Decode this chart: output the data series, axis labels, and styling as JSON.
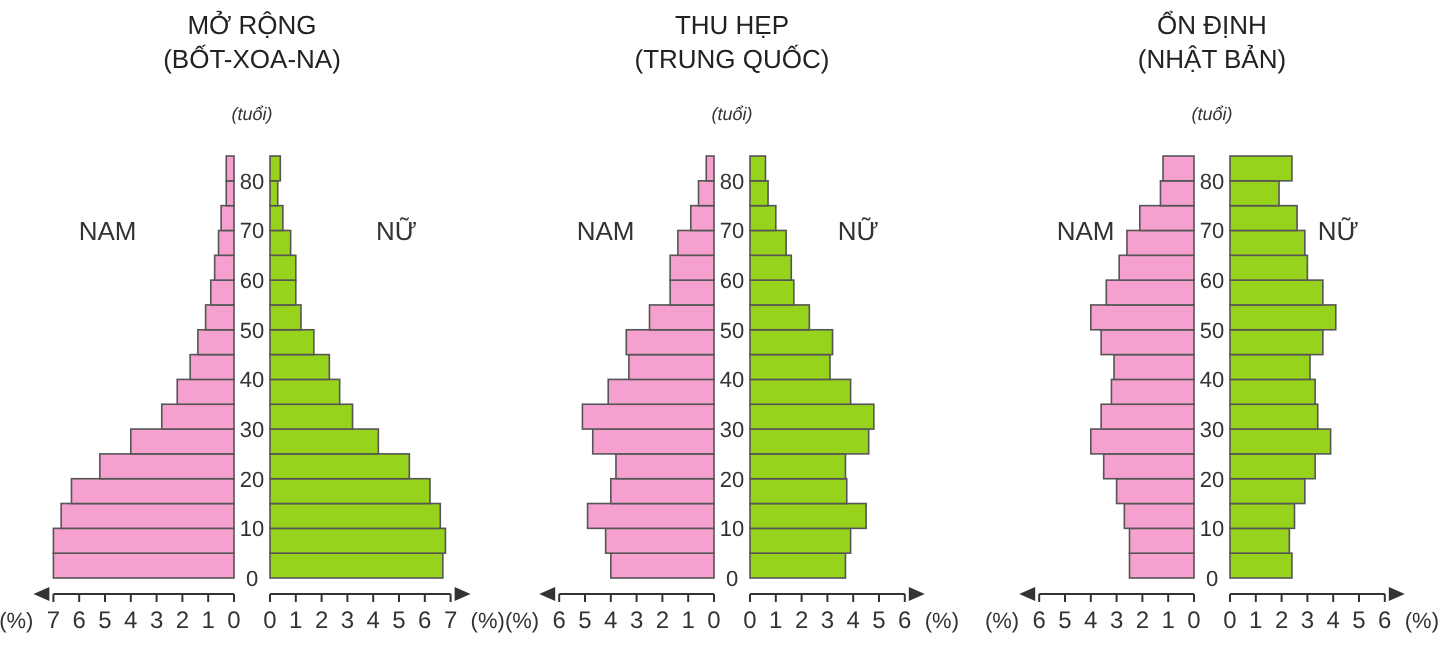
{
  "chart_data": [
    {
      "type": "bar",
      "orientation": "horizontal",
      "title": "MỞ RỘNG",
      "subtitle": "(BỐT-XOA-NA)",
      "ylabel": "(tuổi)",
      "xlabel": "(%)",
      "x": [
        2.5,
        7.5,
        12.5,
        17.5,
        22.5,
        27.5,
        32.5,
        37.5,
        42.5,
        47.5,
        52.5,
        57.5,
        62.5,
        67.5,
        72.5,
        77.5,
        82.5
      ],
      "xlim": [
        7,
        0
      ],
      "xticks": [
        7,
        6,
        5,
        4,
        3,
        2,
        1,
        0
      ],
      "ylim": [
        0,
        85
      ],
      "yticks": [
        0,
        10,
        20,
        30,
        40,
        50,
        60,
        70,
        80
      ],
      "series": [
        {
          "name": "NAM",
          "color": "#f5a0cf",
          "values": [
            7.0,
            7.0,
            6.7,
            6.3,
            5.2,
            4.0,
            2.8,
            2.2,
            1.7,
            1.4,
            1.1,
            0.9,
            0.75,
            0.6,
            0.5,
            0.3,
            0.3
          ]
        }
      ]
    },
    {
      "type": "bar",
      "orientation": "horizontal",
      "xlabel": "(%)",
      "x": [
        2.5,
        7.5,
        12.5,
        17.5,
        22.5,
        27.5,
        32.5,
        37.5,
        42.5,
        47.5,
        52.5,
        57.5,
        62.5,
        67.5,
        72.5,
        77.5,
        82.5
      ],
      "xlim": [
        0,
        7
      ],
      "xticks": [
        0,
        1,
        2,
        3,
        4,
        5,
        6,
        7
      ],
      "ylim": [
        0,
        85
      ],
      "tick_labels": "x",
      "series": [
        {
          "name": "NỮ",
          "color": "#97d21c",
          "values": [
            6.7,
            6.8,
            6.6,
            6.2,
            5.4,
            4.2,
            3.2,
            2.7,
            2.3,
            1.7,
            1.2,
            1.0,
            1.0,
            0.8,
            0.5,
            0.3,
            0.4
          ]
        }
      ]
    },
    {
      "type": "bar",
      "orientation": "horizontal",
      "title": "THU HẸP",
      "subtitle": "(TRUNG QUỐC)",
      "ylabel": "(tuổi)",
      "xlabel": "(%)",
      "x": [
        2.5,
        7.5,
        12.5,
        17.5,
        22.5,
        27.5,
        32.5,
        37.5,
        42.5,
        47.5,
        52.5,
        57.5,
        62.5,
        67.5,
        72.5,
        77.5,
        82.5
      ],
      "xlim": [
        6,
        0
      ],
      "xticks": [
        6,
        5,
        4,
        3,
        2,
        1,
        0
      ],
      "ylim": [
        0,
        85
      ],
      "yticks": [
        0,
        10,
        20,
        30,
        40,
        50,
        60,
        70,
        80
      ],
      "series": [
        {
          "name": "NAM",
          "color": "#f5a0cf",
          "values": [
            4.0,
            4.2,
            4.9,
            4.0,
            3.8,
            4.7,
            5.1,
            4.1,
            3.3,
            3.4,
            2.5,
            1.7,
            1.7,
            1.4,
            0.9,
            0.6,
            0.3
          ]
        }
      ]
    },
    {
      "type": "bar",
      "orientation": "horizontal",
      "xlabel": "(%)",
      "x": [
        2.5,
        7.5,
        12.5,
        17.5,
        22.5,
        27.5,
        32.5,
        37.5,
        42.5,
        47.5,
        52.5,
        57.5,
        62.5,
        67.5,
        72.5,
        77.5,
        82.5
      ],
      "xlim": [
        0,
        6
      ],
      "xticks": [
        0,
        1,
        2,
        3,
        4,
        5,
        6
      ],
      "ylim": [
        0,
        85
      ],
      "tick_labels": "x",
      "series": [
        {
          "name": "NỮ",
          "color": "#97d21c",
          "values": [
            3.7,
            3.9,
            4.5,
            3.75,
            3.7,
            4.6,
            4.8,
            3.9,
            3.1,
            3.2,
            2.3,
            1.7,
            1.6,
            1.4,
            1.0,
            0.7,
            0.6
          ]
        }
      ]
    },
    {
      "type": "bar",
      "orientation": "horizontal",
      "title": "ỔN ĐỊNH",
      "subtitle": "(NHẬT BẢN)",
      "ylabel": "(tuổi)",
      "xlabel": "(%)",
      "x": [
        2.5,
        7.5,
        12.5,
        17.5,
        22.5,
        27.5,
        32.5,
        37.5,
        42.5,
        47.5,
        52.5,
        57.5,
        62.5,
        67.5,
        72.5,
        77.5,
        82.5
      ],
      "xlim": [
        6,
        0
      ],
      "xticks": [
        6,
        5,
        4,
        3,
        2,
        1,
        0
      ],
      "ylim": [
        0,
        85
      ],
      "yticks": [
        0,
        10,
        20,
        30,
        40,
        50,
        60,
        70,
        80
      ],
      "series": [
        {
          "name": "NAM",
          "color": "#f5a0cf",
          "values": [
            2.5,
            2.5,
            2.7,
            3.0,
            3.5,
            4.0,
            3.6,
            3.2,
            3.1,
            3.6,
            4.0,
            3.4,
            2.9,
            2.6,
            2.1,
            1.3,
            1.2
          ]
        }
      ]
    },
    {
      "type": "bar",
      "orientation": "horizontal",
      "xlabel": "(%)",
      "x": [
        2.5,
        7.5,
        12.5,
        17.5,
        22.5,
        27.5,
        32.5,
        37.5,
        42.5,
        47.5,
        52.5,
        57.5,
        62.5,
        67.5,
        72.5,
        77.5,
        82.5
      ],
      "xlim": [
        0,
        6
      ],
      "xticks": [
        0,
        1,
        2,
        3,
        4,
        5,
        6
      ],
      "ylim": [
        0,
        85
      ],
      "tick_labels": "x",
      "series": [
        {
          "name": "NỮ",
          "color": "#97d21c",
          "values": [
            2.4,
            2.3,
            2.5,
            2.9,
            3.3,
            3.9,
            3.4,
            3.3,
            3.1,
            3.6,
            4.1,
            3.6,
            3.0,
            2.9,
            2.6,
            1.9,
            2.4
          ]
        }
      ]
    }
  ]
}
